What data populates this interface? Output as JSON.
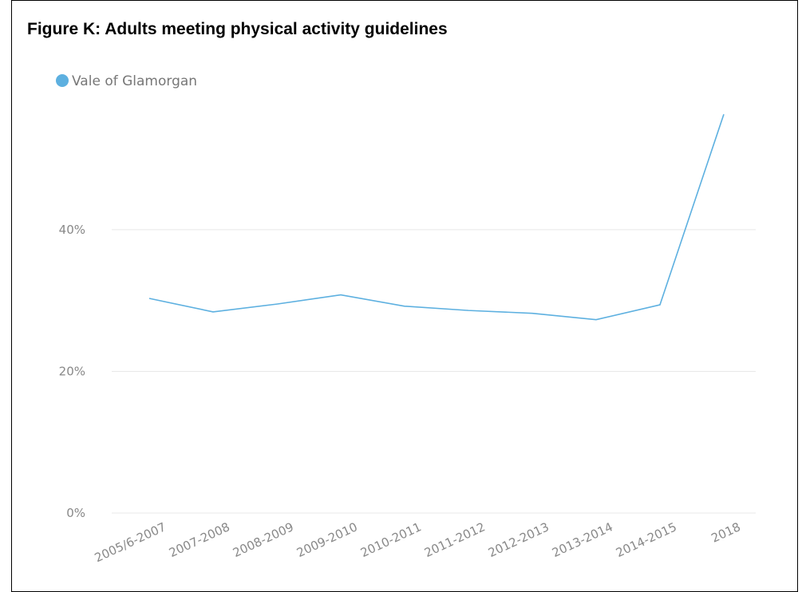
{
  "chart_data": {
    "type": "line",
    "title": "Figure K: Adults meeting physical activity guidelines",
    "categories": [
      "2005/6-2007",
      "2007-2008",
      "2008-2009",
      "2009-2010",
      "2010-2011",
      "2011-2012",
      "2012-2013",
      "2013-2014",
      "2014-2015",
      "2018"
    ],
    "series": [
      {
        "name": "Vale of Glamorgan",
        "color": "#5db0e0",
        "values": [
          30.3,
          28.4,
          29.5,
          30.8,
          29.2,
          28.6,
          28.2,
          27.3,
          29.4,
          56.3
        ]
      }
    ],
    "ylim": [
      0,
      57
    ],
    "yticks": [
      {
        "value": 0,
        "label": "0%"
      },
      {
        "value": 20,
        "label": "20%"
      },
      {
        "value": 40,
        "label": "40%"
      }
    ],
    "grid": true,
    "legend": "top-left"
  }
}
